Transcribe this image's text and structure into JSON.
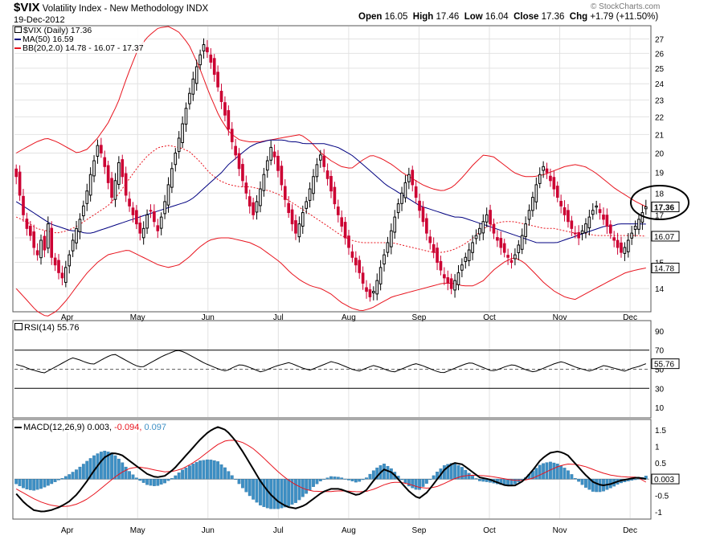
{
  "header": {
    "symbol": "$VIX",
    "name": "Volatility Index - New Methodology",
    "exchange": "INDX",
    "date": "19-Dec-2012",
    "open_label": "Open",
    "open": "16.05",
    "high_label": "High",
    "high": "17.46",
    "low_label": "Low",
    "low": "16.04",
    "close_label": "Close",
    "close": "17.36",
    "chg_label": "Chg",
    "chg": "+1.79 (+11.50%)",
    "logo": "© StockCharts.com"
  },
  "legend": {
    "price": "$VIX (Daily) 17.36",
    "ma": "MA(50) 16.59",
    "bb": "BB(20,2.0) 14.78 - 16.07 - 17.37"
  },
  "rsi_legend": "RSI(14) 55.76",
  "macd_legend": {
    "prefix": "MACD(12,26,9)",
    "macd": "0.003,",
    "signal": "-0.094,",
    "hist": "0.097"
  },
  "colors": {
    "up": "#000000",
    "down": "#cc0033",
    "bb": "#e8141e",
    "ma": "#000080",
    "hist": "#3d8fc4",
    "grid": "#e2e2e2",
    "circle": "#000000"
  },
  "chart_data": [
    {
      "type": "candlestick",
      "panel": "price",
      "x_labels": [
        "Apr",
        "May",
        "Jun",
        "Jul",
        "Aug",
        "Sep",
        "Oct",
        "Nov",
        "Dec"
      ],
      "y_ticks": [
        14,
        15,
        16,
        17,
        18,
        19,
        20,
        21,
        22,
        23,
        24,
        25,
        26,
        27
      ],
      "y_log": true,
      "ylim": [
        13.2,
        27.9
      ],
      "last_close": 17.36,
      "badges": [
        {
          "value": 17.36,
          "label": "17.36",
          "highlight": true
        },
        {
          "value": 16.07,
          "label": "16.07"
        },
        {
          "value": 14.78,
          "label": "14.78"
        }
      ],
      "close": [
        18.8,
        17.9,
        17.0,
        16.4,
        16.1,
        15.6,
        15.3,
        15.9,
        15.5,
        16.6,
        15.2,
        14.9,
        14.6,
        14.4,
        14.8,
        15.3,
        15.9,
        16.4,
        16.8,
        17.4,
        18.1,
        18.9,
        19.6,
        20.4,
        20.0,
        19.3,
        18.5,
        17.8,
        18.6,
        19.5,
        18.8,
        17.9,
        17.4,
        17.0,
        16.6,
        16.2,
        16.4,
        17.0,
        17.2,
        16.7,
        16.3,
        16.9,
        17.6,
        18.4,
        19.2,
        20.0,
        20.8,
        21.6,
        22.5,
        23.4,
        24.3,
        25.1,
        25.9,
        26.6,
        26.1,
        25.4,
        24.6,
        23.8,
        22.9,
        22.1,
        21.3,
        20.6,
        19.9,
        19.2,
        18.6,
        18.0,
        17.4,
        17.0,
        17.6,
        18.2,
        18.9,
        19.6,
        20.3,
        19.8,
        19.1,
        18.4,
        17.7,
        17.1,
        16.6,
        16.2,
        16.6,
        17.1,
        17.6,
        18.2,
        18.8,
        19.4,
        19.9,
        19.3,
        18.7,
        18.1,
        17.5,
        17.0,
        16.5,
        16.0,
        15.6,
        15.2,
        14.9,
        14.6,
        14.2,
        13.9,
        13.7,
        13.9,
        14.3,
        14.8,
        15.3,
        15.8,
        16.3,
        16.9,
        17.5,
        18.0,
        18.5,
        18.9,
        18.4,
        17.8,
        17.2,
        16.7,
        16.2,
        15.8,
        15.4,
        15.0,
        14.7,
        14.4,
        14.2,
        14.0,
        14.3,
        14.6,
        14.9,
        15.2,
        15.5,
        15.8,
        16.1,
        16.4,
        16.7,
        17.0,
        16.6,
        16.2,
        15.9,
        15.6,
        15.4,
        15.2,
        15.0,
        15.3,
        15.7,
        16.1,
        16.6,
        17.2,
        17.8,
        18.4,
        18.9,
        19.3,
        19.0,
        18.6,
        18.2,
        17.8,
        17.4,
        17.0,
        16.7,
        16.4,
        16.2,
        16.0,
        16.3,
        16.6,
        16.9,
        17.2,
        17.4,
        17.1,
        16.8,
        16.5,
        16.2,
        15.9,
        15.6,
        15.4,
        15.6,
        15.9,
        16.2,
        16.5,
        16.8,
        17.1,
        17.36
      ],
      "ma50": [
        17.6,
        17.4,
        17.2,
        17.0,
        16.8,
        16.6,
        16.5,
        16.4,
        16.3,
        16.3,
        16.2,
        16.2,
        16.3,
        16.4,
        16.5,
        16.6,
        16.7,
        16.8,
        16.9,
        17.0,
        17.1,
        17.2,
        17.3,
        17.4,
        17.5,
        17.6,
        17.8,
        18.1,
        18.4,
        18.7,
        19.0,
        19.4,
        19.7,
        20.0,
        20.3,
        20.5,
        20.6,
        20.7,
        20.7,
        20.7,
        20.6,
        20.6,
        20.5,
        20.5,
        20.5,
        20.5,
        20.4,
        20.3,
        20.1,
        19.9,
        19.6,
        19.3,
        19.0,
        18.7,
        18.4,
        18.2,
        18.0,
        17.8,
        17.6,
        17.4,
        17.3,
        17.2,
        17.1,
        17.0,
        16.9,
        16.9,
        16.8,
        16.7,
        16.6,
        16.5,
        16.4,
        16.3,
        16.2,
        16.1,
        16.0,
        15.9,
        15.8,
        15.8,
        15.8,
        15.8,
        15.9,
        16.0,
        16.1,
        16.2,
        16.3,
        16.4,
        16.5,
        16.5,
        16.6,
        16.6,
        16.6,
        16.6,
        16.59
      ],
      "bb_upper": [
        20.0,
        20.3,
        20.6,
        20.8,
        20.6,
        20.3,
        20.0,
        20.2,
        20.8,
        21.6,
        22.8,
        24.6,
        26.3,
        27.2,
        27.8,
        27.9,
        27.5,
        26.6,
        25.1,
        23.4,
        22.0,
        21.1,
        20.7,
        20.6,
        20.6,
        20.7,
        20.8,
        20.9,
        21.0,
        20.6,
        20.0,
        19.6,
        19.3,
        19.2,
        19.6,
        19.9,
        19.7,
        19.4,
        19.0,
        18.7,
        18.4,
        18.2,
        18.1,
        18.3,
        18.8,
        19.4,
        19.9,
        19.8,
        19.4,
        19.0,
        18.8,
        18.8,
        18.9,
        19.1,
        19.3,
        19.4,
        19.3,
        19.0,
        18.6,
        18.2,
        17.9,
        17.6,
        17.37
      ],
      "bb_middle": [
        16.9,
        16.7,
        16.4,
        16.3,
        16.2,
        16.3,
        16.5,
        16.8,
        17.1,
        17.4,
        17.9,
        18.6,
        19.3,
        19.9,
        20.3,
        20.4,
        20.3,
        20.1,
        19.6,
        19.0,
        18.6,
        18.4,
        18.3,
        18.3,
        18.2,
        18.1,
        17.9,
        17.6,
        17.3,
        17.0,
        16.7,
        16.4,
        16.1,
        15.9,
        15.8,
        15.8,
        15.8,
        15.8,
        15.7,
        15.6,
        15.5,
        15.4,
        15.4,
        15.5,
        15.7,
        16.0,
        16.4,
        16.6,
        16.7,
        16.7,
        16.6,
        16.5,
        16.4,
        16.4,
        16.3,
        16.2,
        16.2,
        16.1,
        16.1,
        16.1,
        16.1,
        16.1,
        16.07
      ],
      "bb_lower": [
        14.0,
        13.6,
        13.2,
        13.0,
        13.2,
        13.6,
        14.1,
        14.6,
        15.0,
        15.3,
        15.4,
        15.5,
        15.3,
        15.1,
        14.9,
        14.8,
        14.9,
        15.2,
        15.6,
        15.9,
        16.0,
        16.0,
        15.9,
        15.8,
        15.6,
        15.3,
        15.0,
        14.6,
        14.3,
        14.1,
        14.0,
        13.8,
        13.5,
        13.3,
        13.2,
        13.3,
        13.5,
        13.7,
        13.8,
        13.9,
        14.0,
        14.1,
        14.2,
        14.2,
        14.1,
        14.1,
        14.3,
        14.7,
        15.0,
        15.2,
        15.0,
        14.6,
        14.2,
        13.9,
        13.7,
        13.6,
        13.8,
        14.0,
        14.2,
        14.4,
        14.6,
        14.7,
        14.78
      ]
    },
    {
      "type": "line",
      "panel": "rsi",
      "name": "RSI(14)",
      "y_ticks": [
        10,
        30,
        50,
        70,
        90
      ],
      "ylim": [
        0,
        100
      ],
      "levels": [
        30,
        50,
        70
      ],
      "last": 55.76,
      "badge": "55.76",
      "values": [
        55,
        53,
        50,
        48,
        46,
        50,
        54,
        58,
        62,
        60,
        57,
        55,
        59,
        63,
        66,
        62,
        58,
        54,
        52,
        56,
        60,
        64,
        67,
        70,
        68,
        64,
        60,
        56,
        53,
        50,
        48,
        52,
        55,
        53,
        50,
        47,
        50,
        53,
        55,
        57,
        54,
        51,
        49,
        52,
        55,
        58,
        56,
        53,
        50,
        48,
        51,
        54,
        52,
        49,
        47,
        50,
        53,
        56,
        54,
        51,
        48,
        46,
        49,
        52,
        55,
        57,
        54,
        51,
        48,
        50,
        53,
        55,
        52,
        49,
        47,
        50,
        53,
        56,
        58,
        55,
        52,
        50,
        48,
        51,
        54,
        52,
        50,
        48,
        51,
        53,
        55.76
      ]
    },
    {
      "type": "macd",
      "panel": "macd",
      "name": "MACD(12,26,9)",
      "y_ticks": [
        -1.0,
        -0.5,
        0.5,
        1.0,
        1.5
      ],
      "ylim": [
        -1.2,
        1.8
      ],
      "macd_last": 0.003,
      "signal_last": -0.094,
      "hist_last": 0.097,
      "badge": "0.003",
      "macd": [
        -0.45,
        -0.75,
        -0.95,
        -1.0,
        -0.95,
        -0.85,
        -0.7,
        -0.45,
        -0.1,
        0.3,
        0.65,
        0.8,
        0.75,
        0.55,
        0.35,
        0.15,
        0.05,
        0.1,
        0.3,
        0.6,
        0.9,
        1.2,
        1.45,
        1.6,
        1.5,
        1.2,
        0.8,
        0.35,
        -0.1,
        -0.45,
        -0.7,
        -0.85,
        -0.9,
        -0.8,
        -0.6,
        -0.4,
        -0.3,
        -0.3,
        -0.4,
        -0.5,
        -0.35,
        0.0,
        0.3,
        0.2,
        -0.1,
        -0.4,
        -0.6,
        -0.4,
        -0.05,
        0.3,
        0.5,
        0.45,
        0.25,
        0.05,
        0.0,
        -0.1,
        -0.2,
        -0.2,
        -0.05,
        0.25,
        0.6,
        0.8,
        0.85,
        0.75,
        0.45,
        0.15,
        -0.1,
        -0.2,
        -0.15,
        -0.05,
        0.0,
        0.05,
        0.003
      ],
      "signal": [
        -0.3,
        -0.45,
        -0.6,
        -0.72,
        -0.8,
        -0.84,
        -0.83,
        -0.76,
        -0.63,
        -0.44,
        -0.22,
        0.0,
        0.2,
        0.33,
        0.37,
        0.33,
        0.27,
        0.22,
        0.24,
        0.32,
        0.46,
        0.64,
        0.85,
        1.05,
        1.18,
        1.19,
        1.11,
        0.95,
        0.72,
        0.46,
        0.21,
        -0.01,
        -0.18,
        -0.31,
        -0.37,
        -0.38,
        -0.38,
        -0.36,
        -0.37,
        -0.39,
        -0.38,
        -0.3,
        -0.18,
        -0.1,
        -0.1,
        -0.16,
        -0.25,
        -0.28,
        -0.24,
        -0.13,
        0.0,
        0.09,
        0.12,
        0.11,
        0.09,
        0.05,
        0.0,
        -0.04,
        -0.04,
        0.02,
        0.14,
        0.27,
        0.39,
        0.46,
        0.45,
        0.39,
        0.29,
        0.19,
        0.12,
        0.08,
        0.06,
        0.06,
        -0.094
      ]
    }
  ]
}
